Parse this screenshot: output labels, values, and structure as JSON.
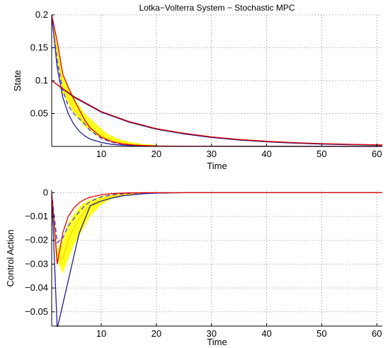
{
  "chart_data": [
    {
      "type": "line",
      "title": "Lotka−Volterra System − Stochastic MPC",
      "xlabel": "Time",
      "ylabel": "State",
      "xlim": [
        1,
        61
      ],
      "ylim": [
        0,
        0.2
      ],
      "xticks": [
        10,
        20,
        30,
        40,
        50,
        60
      ],
      "yticks": [
        0.05,
        0.1,
        0.15,
        0.2
      ],
      "xtick_labels": [
        "10",
        "20",
        "30",
        "40",
        "50",
        "60"
      ],
      "ytick_labels": [
        "0.05",
        "0.1",
        "0.15",
        "0.2"
      ],
      "grid": true,
      "band_fill_color": "#ffff00",
      "band": {
        "x": [
          1,
          3,
          5,
          7,
          9,
          11,
          13,
          15,
          17,
          20
        ],
        "lower": [
          0.195,
          0.08,
          0.05,
          0.03,
          0.017,
          0.009,
          0.005,
          0.003,
          0.002,
          0.001
        ],
        "upper": [
          0.2,
          0.11,
          0.075,
          0.05,
          0.035,
          0.02,
          0.012,
          0.007,
          0.004,
          0.002
        ]
      },
      "series": [
        {
          "color": "#ffff00",
          "style": "solid",
          "x": [
            1,
            3,
            5,
            7,
            9,
            11,
            13,
            15,
            17,
            20
          ],
          "y": [
            0.198,
            0.095,
            0.065,
            0.04,
            0.025,
            0.014,
            0.008,
            0.005,
            0.003,
            0.0015
          ]
        },
        {
          "color": "#ffd700",
          "style": "solid",
          "x": [
            1,
            3,
            5,
            7,
            9,
            11,
            13,
            15,
            17,
            20
          ],
          "y": [
            0.197,
            0.088,
            0.058,
            0.036,
            0.021,
            0.012,
            0.007,
            0.004,
            0.002,
            0.001
          ]
        },
        {
          "color": "#1f1f8f",
          "style": "solid",
          "x": [
            1,
            2,
            3,
            4,
            5,
            6,
            7,
            8,
            10,
            12,
            14,
            16,
            20,
            25,
            61
          ],
          "y": [
            0.2,
            0.12,
            0.075,
            0.05,
            0.034,
            0.023,
            0.016,
            0.011,
            0.006,
            0.003,
            0.0018,
            0.001,
            0.0004,
            0.0001,
            0
          ]
        },
        {
          "color": "#3a3aff",
          "style": "dashed",
          "x": [
            1,
            2,
            3,
            4,
            5,
            6,
            7,
            8,
            10,
            12,
            14,
            16,
            20,
            25
          ],
          "y": [
            0.197,
            0.13,
            0.085,
            0.062,
            0.05,
            0.042,
            0.034,
            0.024,
            0.012,
            0.006,
            0.003,
            0.0015,
            0.0005,
            0.0001
          ]
        },
        {
          "color": "#e00000",
          "style": "solid",
          "x": [
            1,
            2,
            3,
            4,
            5,
            6,
            7,
            8,
            10,
            12,
            14,
            16,
            20,
            25,
            61
          ],
          "y": [
            0.2,
            0.16,
            0.11,
            0.09,
            0.072,
            0.056,
            0.04,
            0.028,
            0.014,
            0.007,
            0.0035,
            0.002,
            0.0006,
            0.0002,
            0
          ]
        },
        {
          "color": "#1f1f8f",
          "style": "solid",
          "x": [
            1,
            5,
            10,
            15,
            20,
            25,
            30,
            35,
            40,
            45,
            50,
            55,
            61
          ],
          "y": [
            0.1,
            0.075,
            0.052,
            0.037,
            0.026,
            0.019,
            0.0135,
            0.0097,
            0.007,
            0.005,
            0.0036,
            0.0026,
            0.0018
          ]
        },
        {
          "color": "#e00000",
          "style": "solid",
          "x": [
            1,
            5,
            10,
            15,
            20,
            25,
            30,
            35,
            40,
            45,
            50,
            55,
            61
          ],
          "y": [
            0.1,
            0.076,
            0.053,
            0.038,
            0.027,
            0.02,
            0.0145,
            0.0105,
            0.0078,
            0.0058,
            0.0043,
            0.0032,
            0.0023
          ]
        }
      ]
    },
    {
      "type": "line",
      "xlabel": "Time",
      "ylabel": "Control Action",
      "xlim": [
        1,
        61
      ],
      "ylim": [
        -0.056,
        0.001
      ],
      "xticks": [
        10,
        20,
        30,
        40,
        50,
        60
      ],
      "yticks": [
        0,
        -0.01,
        -0.02,
        -0.03,
        -0.04,
        -0.05
      ],
      "xtick_labels": [
        "10",
        "20",
        "30",
        "40",
        "50",
        "60"
      ],
      "ytick_labels": [
        "0",
        "−0.01",
        "−0.02",
        "−0.03",
        "−0.04",
        "−0.05"
      ],
      "grid": true,
      "band_fill_color": "#ffff00",
      "band": {
        "x": [
          1,
          2,
          3,
          4,
          5,
          6,
          7,
          8,
          10,
          12,
          15,
          18,
          22
        ],
        "lower": [
          0,
          -0.028,
          -0.034,
          -0.028,
          -0.022,
          -0.018,
          -0.014,
          -0.01,
          -0.005,
          -0.0025,
          -0.001,
          -0.0004,
          -0.0001
        ],
        "upper": [
          0,
          -0.024,
          -0.02,
          -0.013,
          -0.009,
          -0.006,
          -0.004,
          -0.003,
          -0.0015,
          -0.0007,
          -0.0003,
          -0.0001,
          0
        ]
      },
      "series": [
        {
          "color": "#ffff00",
          "style": "solid",
          "x": [
            1,
            2,
            3,
            4,
            5,
            6,
            7,
            8,
            10,
            12,
            15,
            18,
            22
          ],
          "y": [
            0,
            -0.027,
            -0.031,
            -0.024,
            -0.018,
            -0.014,
            -0.01,
            -0.007,
            -0.0035,
            -0.0017,
            -0.0007,
            -0.0003,
            0
          ]
        },
        {
          "color": "#ffd700",
          "style": "solid",
          "x": [
            1,
            2,
            3,
            4,
            5,
            6,
            7,
            8,
            10,
            12,
            15,
            18,
            22
          ],
          "y": [
            0,
            -0.026,
            -0.028,
            -0.02,
            -0.015,
            -0.011,
            -0.008,
            -0.0055,
            -0.0027,
            -0.0013,
            -0.0005,
            -0.0002,
            0
          ]
        },
        {
          "color": "#1f1f8f",
          "style": "solid",
          "x": [
            1,
            2,
            3,
            4,
            5,
            6,
            8,
            10,
            12,
            14,
            16,
            18,
            20,
            25,
            61
          ],
          "y": [
            0,
            -0.057,
            -0.047,
            -0.037,
            -0.027,
            -0.017,
            -0.0055,
            -0.0035,
            -0.0022,
            -0.0013,
            -0.0008,
            -0.0004,
            -0.0002,
            0,
            0
          ]
        },
        {
          "color": "#3a3aff",
          "style": "dashed",
          "x": [
            1,
            2,
            3,
            4,
            5,
            6,
            7,
            8,
            10,
            12,
            15,
            18,
            22
          ],
          "y": [
            0,
            -0.021,
            -0.019,
            -0.014,
            -0.011,
            -0.008,
            -0.0055,
            -0.0037,
            -0.0018,
            -0.0009,
            -0.0003,
            -0.0001,
            0
          ]
        },
        {
          "color": "#e00000",
          "style": "solid",
          "x": [
            1,
            2,
            3,
            4,
            5,
            6,
            7,
            8,
            10,
            12,
            15,
            18,
            22,
            61
          ],
          "y": [
            0,
            -0.03,
            -0.017,
            -0.01,
            -0.0065,
            -0.0042,
            -0.0028,
            -0.0019,
            -0.0009,
            -0.0004,
            -0.0001,
            0,
            0,
            0
          ]
        }
      ]
    }
  ]
}
